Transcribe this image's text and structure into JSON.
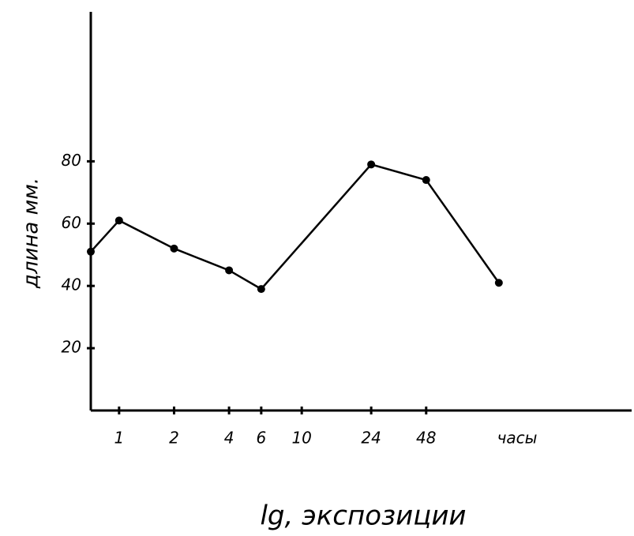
{
  "chart_data": {
    "type": "line",
    "x_label": "lg, экспозиции",
    "x_unit": "часы",
    "y_label": "длина мм.",
    "x": [
      0.7,
      1,
      2,
      4,
      6,
      24,
      48,
      120
    ],
    "series": [
      {
        "values": [
          51,
          61,
          52,
          45,
          39,
          79,
          74,
          41
        ],
        "color": "#000000"
      }
    ],
    "xscale": "log",
    "xlim": [
      0.7,
      640
    ],
    "xticks": [
      1,
      2,
      4,
      6,
      10,
      24,
      48
    ],
    "ylim": [
      0,
      128
    ],
    "yticks": [
      20,
      40,
      60,
      80
    ],
    "grid": false
  }
}
